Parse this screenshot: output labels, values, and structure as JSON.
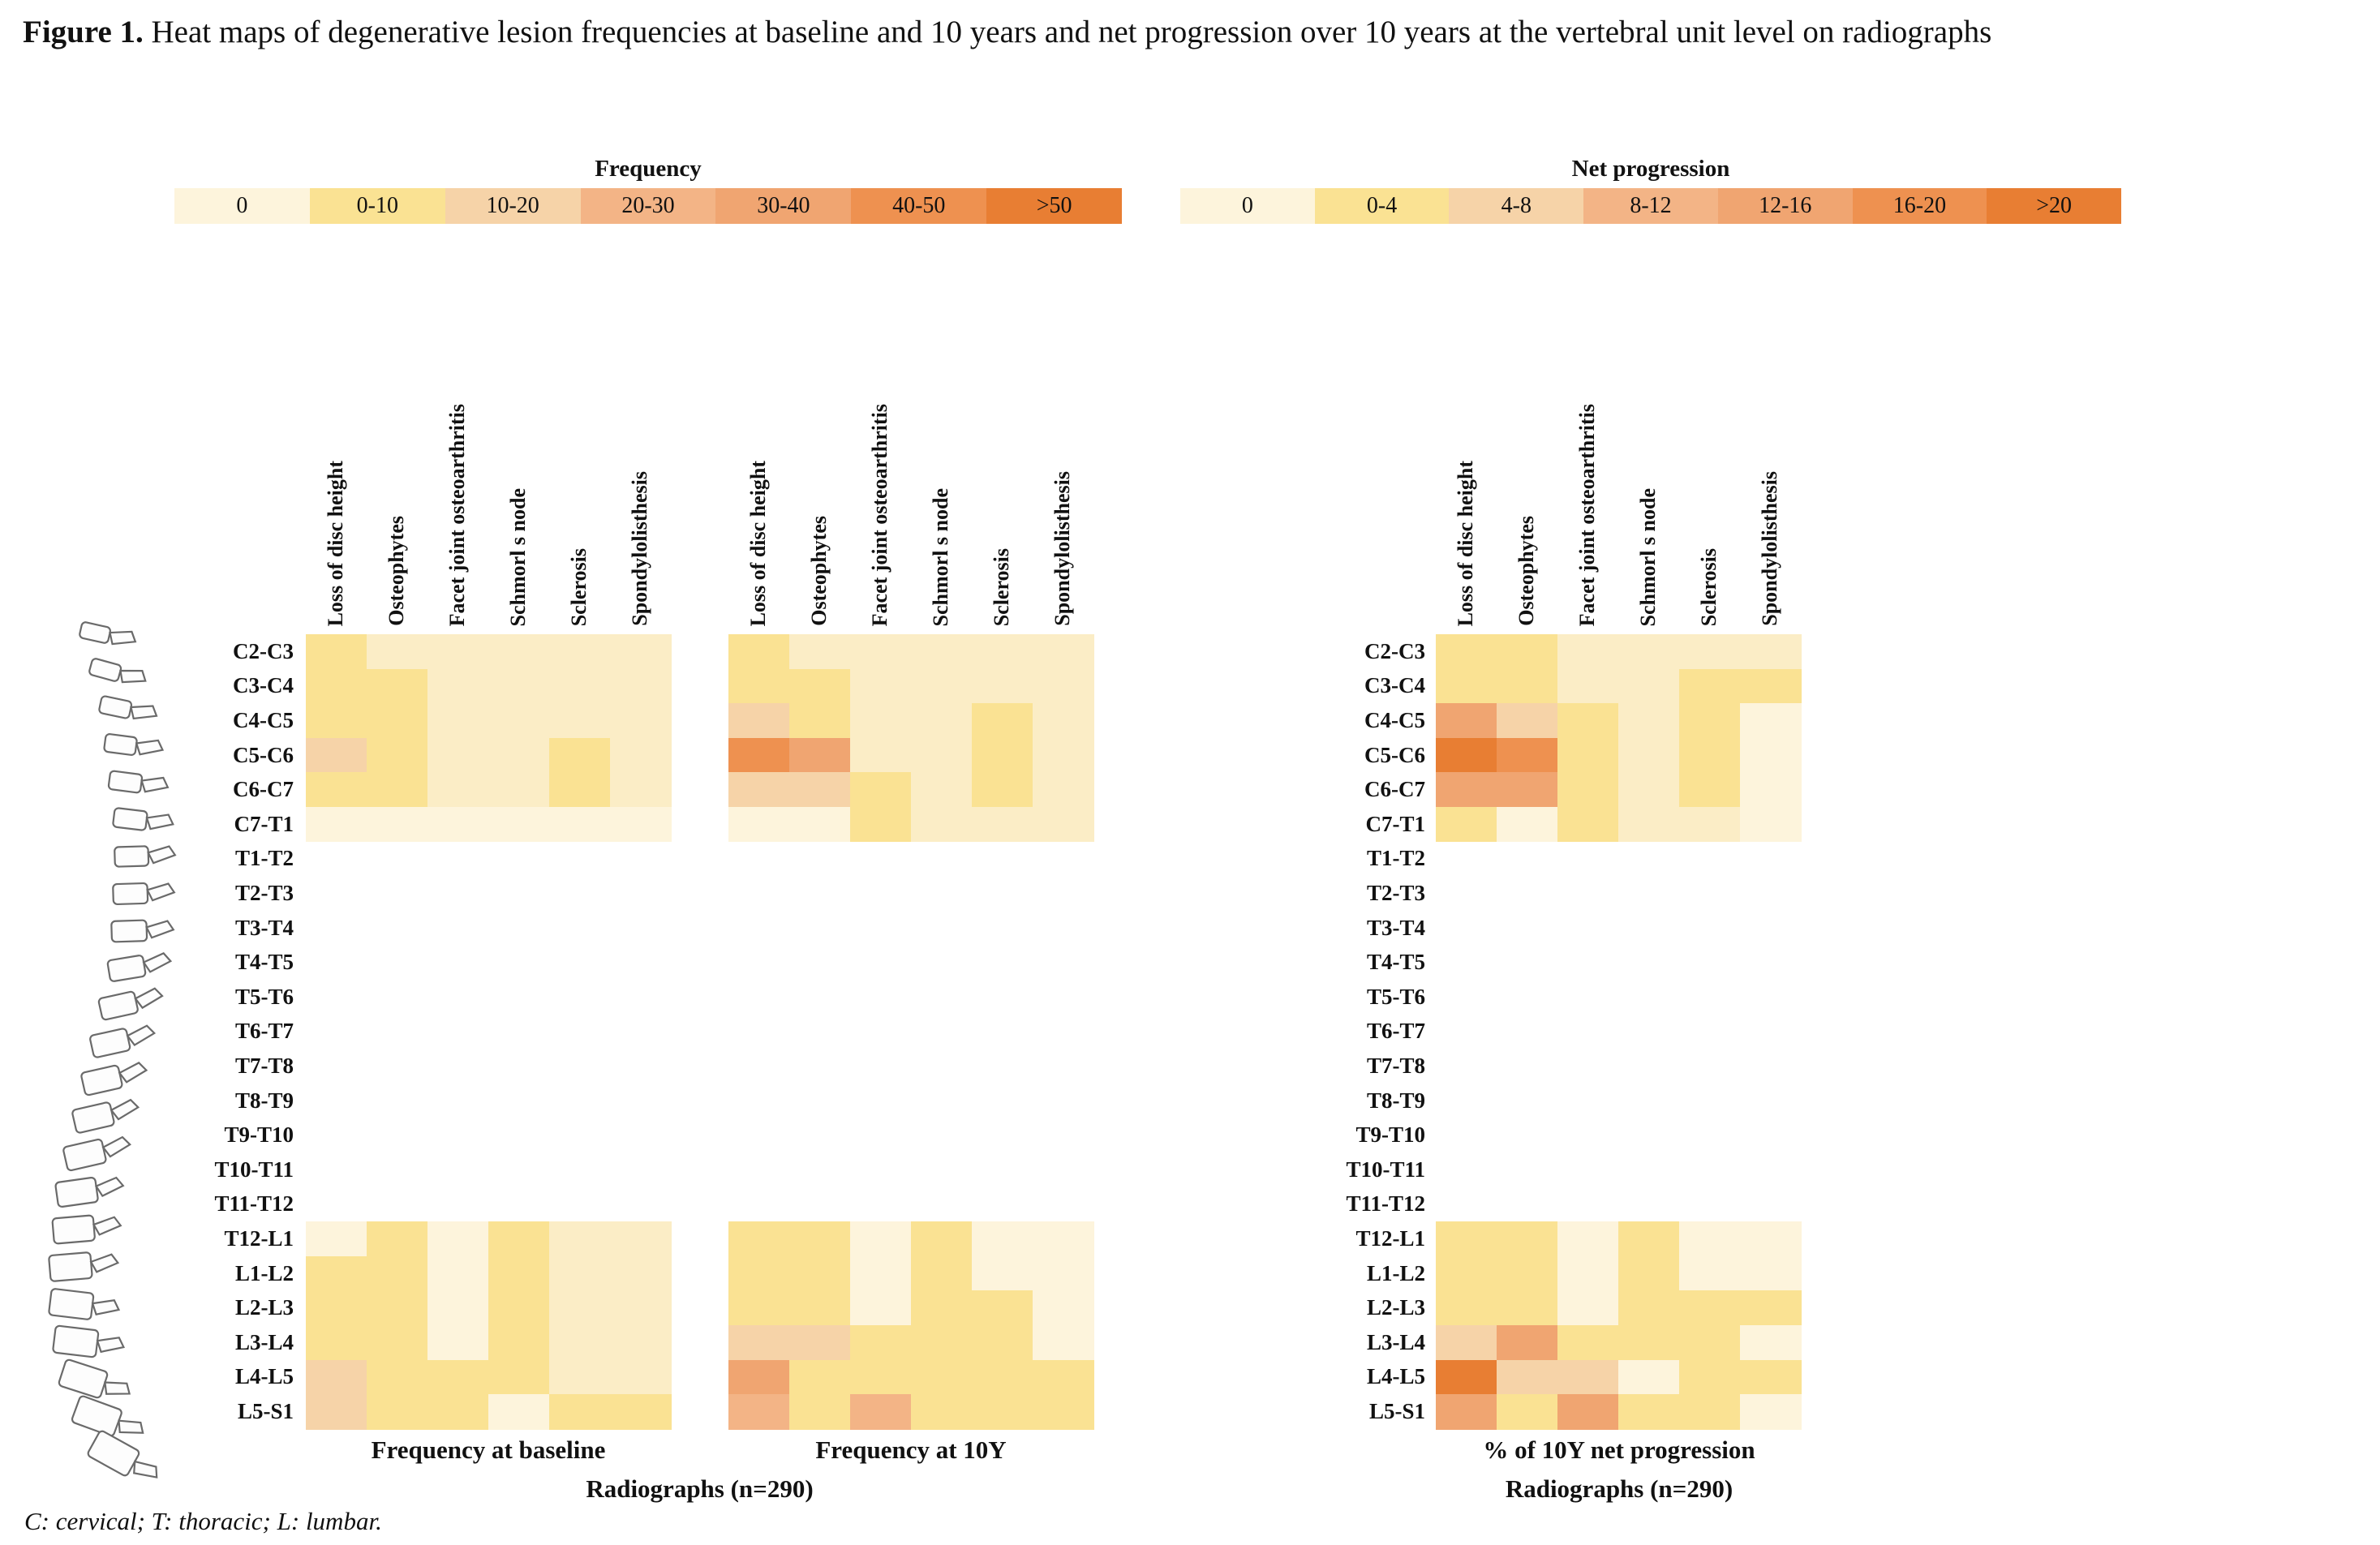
{
  "title": {
    "label": "Figure 1.",
    "text": " Heat maps of degenerative lesion frequencies at baseline and 10 years and net progression over 10 years at the vertebral unit level on radiographs"
  },
  "footnote": "C: cervical; T: thoracic; L: lumbar.",
  "chart_data": {
    "type": "heatmap",
    "row_labels": [
      "C2-C3",
      "C3-C4",
      "C4-C5",
      "C5-C6",
      "C6-C7",
      "C7-T1",
      "T1-T2",
      "T2-T3",
      "T3-T4",
      "T4-T5",
      "T5-T6",
      "T6-T7",
      "T7-T8",
      "T8-T9",
      "T9-T10",
      "T10-T11",
      "T11-T12",
      "T12-L1",
      "L1-L2",
      "L2-L3",
      "L3-L4",
      "L4-L5",
      "L5-S1"
    ],
    "column_labels": [
      "Loss of disc height",
      "Osteophytes",
      "Facet joint osteoarthritis",
      "Schmorl s node",
      "Sclerosis",
      "Spondylolisthesis"
    ],
    "legends": [
      {
        "title": "Frequency",
        "bins": [
          "0",
          "0-10",
          "10-20",
          "20-30",
          "30-40",
          "40-50",
          ">50"
        ]
      },
      {
        "title": "Net progression",
        "bins": [
          "0",
          "0-4",
          "4-8",
          "8-12",
          "12-16",
          "16-20",
          ">20"
        ]
      }
    ],
    "legend_levels": [
      "z",
      "1",
      "2",
      "3",
      "4",
      "5",
      "6"
    ],
    "palette": {
      "z": "#FDF4DC",
      "c": "#FBEDC6",
      "1": "#FAE293",
      "2": "#F6D3A8",
      "3": "#F3B486",
      "4": "#F0A571",
      "5": "#EE9150",
      "6": "#E87E33"
    },
    "maps": [
      {
        "caption": "Frequency at baseline",
        "cervical": [
          [
            "1",
            "c",
            "c",
            "c",
            "c",
            "c"
          ],
          [
            "1",
            "1",
            "c",
            "c",
            "c",
            "c"
          ],
          [
            "1",
            "1",
            "c",
            "c",
            "c",
            "c"
          ],
          [
            "2",
            "1",
            "c",
            "c",
            "1",
            "c"
          ],
          [
            "1",
            "1",
            "c",
            "c",
            "1",
            "c"
          ],
          [
            "z",
            "z",
            "z",
            "z",
            "z",
            "z"
          ]
        ],
        "lumbar": [
          [
            "z",
            "1",
            "z",
            "1",
            "c",
            "c"
          ],
          [
            "1",
            "1",
            "z",
            "1",
            "c",
            "c"
          ],
          [
            "1",
            "1",
            "z",
            "1",
            "c",
            "c"
          ],
          [
            "1",
            "1",
            "z",
            "1",
            "c",
            "c"
          ],
          [
            "2",
            "1",
            "1",
            "1",
            "c",
            "c"
          ],
          [
            "2",
            "1",
            "1",
            "z",
            "1",
            "1"
          ]
        ]
      },
      {
        "caption": "Frequency at 10Y",
        "cervical": [
          [
            "1",
            "c",
            "c",
            "c",
            "c",
            "c"
          ],
          [
            "1",
            "1",
            "c",
            "c",
            "c",
            "c"
          ],
          [
            "2",
            "1",
            "c",
            "c",
            "1",
            "c"
          ],
          [
            "5",
            "4",
            "c",
            "c",
            "1",
            "c"
          ],
          [
            "2",
            "2",
            "1",
            "c",
            "1",
            "c"
          ],
          [
            "z",
            "z",
            "1",
            "c",
            "c",
            "c"
          ]
        ],
        "lumbar": [
          [
            "1",
            "1",
            "z",
            "1",
            "z",
            "z"
          ],
          [
            "1",
            "1",
            "z",
            "1",
            "z",
            "z"
          ],
          [
            "1",
            "1",
            "z",
            "1",
            "1",
            "z"
          ],
          [
            "2",
            "2",
            "1",
            "1",
            "1",
            "z"
          ],
          [
            "4",
            "1",
            "1",
            "1",
            "1",
            "1"
          ],
          [
            "3",
            "1",
            "3",
            "1",
            "1",
            "1"
          ]
        ]
      },
      {
        "caption": "% of 10Y net progression",
        "cervical": [
          [
            "1",
            "1",
            "c",
            "c",
            "c",
            "c"
          ],
          [
            "1",
            "1",
            "c",
            "c",
            "1",
            "1"
          ],
          [
            "4",
            "2",
            "1",
            "c",
            "1",
            "z"
          ],
          [
            "6",
            "5",
            "1",
            "c",
            "1",
            "z"
          ],
          [
            "4",
            "4",
            "1",
            "c",
            "1",
            "z"
          ],
          [
            "1",
            "z",
            "1",
            "c",
            "c",
            "z"
          ]
        ],
        "lumbar": [
          [
            "1",
            "1",
            "z",
            "1",
            "z",
            "z"
          ],
          [
            "1",
            "1",
            "z",
            "1",
            "z",
            "z"
          ],
          [
            "1",
            "1",
            "z",
            "1",
            "1",
            "1"
          ],
          [
            "2",
            "4",
            "1",
            "1",
            "1",
            "z"
          ],
          [
            "6",
            "2",
            "2",
            "z",
            "1",
            "1"
          ],
          [
            "4",
            "1",
            "4",
            "1",
            "1",
            "z"
          ]
        ]
      }
    ],
    "sample_caption": "Radiographs (n=290)"
  }
}
